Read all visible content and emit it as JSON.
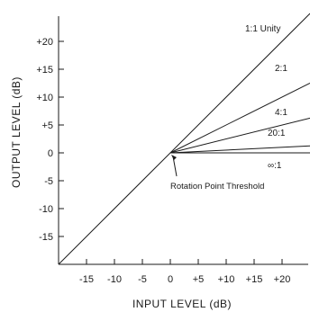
{
  "chart_data": {
    "type": "line",
    "title": "",
    "xlabel": "INPUT  LEVEL  (dB)",
    "ylabel": "OUTPUT  LEVEL  (dB)",
    "xlim": [
      -20,
      25
    ],
    "ylim": [
      -20,
      25
    ],
    "x_ticks": [
      -15,
      -10,
      -5,
      0,
      5,
      10,
      15,
      20
    ],
    "x_tick_labels": [
      "-15",
      "-10",
      "-5",
      "0",
      "+5",
      "+10",
      "+15",
      "+20"
    ],
    "y_ticks": [
      -15,
      -10,
      -5,
      0,
      5,
      10,
      15,
      20
    ],
    "y_tick_labels": [
      "-15",
      "-10",
      "-5",
      "0",
      "+5",
      "+10",
      "+15",
      "+20"
    ],
    "grid": false,
    "series": [
      {
        "name": "1:1  Unity",
        "x": [
          -20,
          25
        ],
        "y": [
          -20,
          25
        ]
      },
      {
        "name": "2:1",
        "x": [
          0,
          25
        ],
        "y": [
          0,
          12.5
        ]
      },
      {
        "name": "4:1",
        "x": [
          0,
          25
        ],
        "y": [
          0,
          6.25
        ]
      },
      {
        "name": "20:1",
        "x": [
          0,
          25
        ],
        "y": [
          0,
          1.25
        ]
      },
      {
        "name": "∞:1",
        "x": [
          0,
          25
        ],
        "y": [
          0,
          0
        ]
      }
    ],
    "annotations": [
      {
        "text": "Rotation Point Threshold",
        "points_to": [
          0,
          0
        ]
      }
    ]
  }
}
